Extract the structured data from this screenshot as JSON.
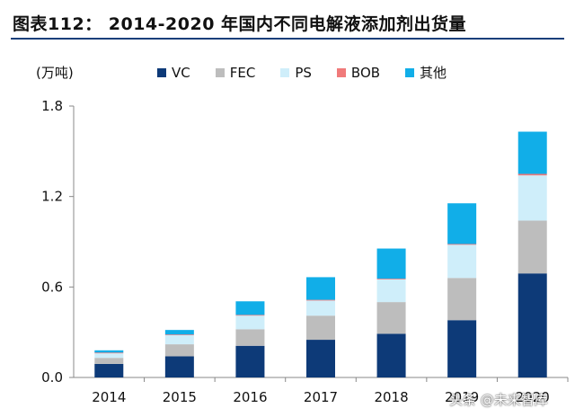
{
  "title": "图表112：  2014-2020 年国内不同电解液添加剂出货量",
  "watermark": "头条 @未来智库",
  "chart_data": {
    "type": "bar",
    "stacked": true,
    "unit_label": "(万吨)",
    "categories": [
      "2014",
      "2015",
      "2016",
      "2017",
      "2018",
      "2019",
      "2020"
    ],
    "ylim": [
      0,
      1.8
    ],
    "yticks": [
      "0.0",
      "0.6",
      "1.2",
      "1.8"
    ],
    "grid": false,
    "legend_position": "top",
    "series": [
      {
        "name": "VC",
        "color": "#0d3a78",
        "values": [
          0.09,
          0.14,
          0.21,
          0.25,
          0.29,
          0.38,
          0.69
        ]
      },
      {
        "name": "FEC",
        "color": "#bdbdbd",
        "values": [
          0.04,
          0.08,
          0.11,
          0.16,
          0.21,
          0.28,
          0.35
        ]
      },
      {
        "name": "PS",
        "color": "#cfeefa",
        "values": [
          0.03,
          0.06,
          0.09,
          0.1,
          0.15,
          0.22,
          0.3
        ]
      },
      {
        "name": "BOB",
        "color": "#f07a7a",
        "values": [
          0.005,
          0.005,
          0.005,
          0.005,
          0.005,
          0.005,
          0.01
        ]
      },
      {
        "name": "其他",
        "color": "#11aee8",
        "values": [
          0.015,
          0.03,
          0.09,
          0.15,
          0.2,
          0.27,
          0.28
        ]
      }
    ]
  }
}
